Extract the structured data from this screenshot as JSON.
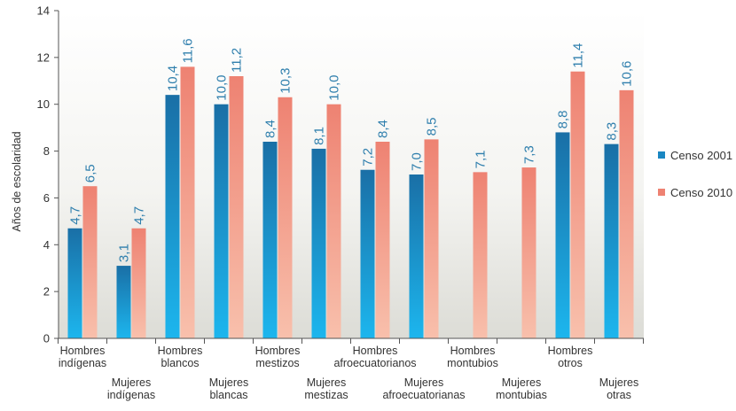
{
  "chart_data": {
    "type": "bar",
    "ylabel": "Años de escolaridad",
    "ylim": [
      0,
      14
    ],
    "yticks": [
      0,
      2,
      4,
      6,
      8,
      10,
      12,
      14
    ],
    "grid": false,
    "legend_position": "right",
    "categories": [
      "Hombres indígenas",
      "Mujeres indígenas",
      "Hombres blancos",
      "Mujeres blancas",
      "Hombres mestizos",
      "Mujeres mestizas",
      "Hombres afroecuatorianos",
      "Mujeres afroecuatorianas",
      "Hombres montubios",
      "Mujeres montubias",
      "Hombres otros",
      "Mujeres otras"
    ],
    "category_lines": [
      [
        "Hombres",
        "indígenas"
      ],
      [
        "Mujeres",
        "indígenas"
      ],
      [
        "Hombres",
        "blancos"
      ],
      [
        "Mujeres",
        "blancas"
      ],
      [
        "Hombres",
        "mestizos"
      ],
      [
        "Mujeres",
        "mestizas"
      ],
      [
        "Hombres",
        "afroecuatorianos"
      ],
      [
        "Mujeres",
        "afroecuatorianas"
      ],
      [
        "Hombres",
        "montubios"
      ],
      [
        "Mujeres",
        "montubias"
      ],
      [
        "Hombres",
        "otros"
      ],
      [
        "Mujeres",
        "otras"
      ]
    ],
    "series": [
      {
        "name": "Censo 2001",
        "color": "#1a87c2",
        "values": [
          4.7,
          3.1,
          10.4,
          10.0,
          8.4,
          8.1,
          7.2,
          7.0,
          null,
          null,
          8.8,
          8.3
        ],
        "labels": [
          "4,7",
          "3,1",
          "10,4",
          "10,0",
          "8,4",
          "8,1",
          "7,2",
          "7,0",
          null,
          null,
          "8,8",
          "8,3"
        ]
      },
      {
        "name": "Censo 2010",
        "color": "#ee8272",
        "values": [
          6.5,
          4.7,
          11.6,
          11.2,
          10.3,
          10.0,
          8.4,
          8.5,
          7.1,
          7.3,
          11.4,
          10.6
        ],
        "labels": [
          "6,5",
          "4,7",
          "11,6",
          "11,2",
          "10,3",
          "10,0",
          "8,4",
          "8,5",
          "7,1",
          "7,3",
          "11,4",
          "10,6"
        ]
      }
    ]
  }
}
